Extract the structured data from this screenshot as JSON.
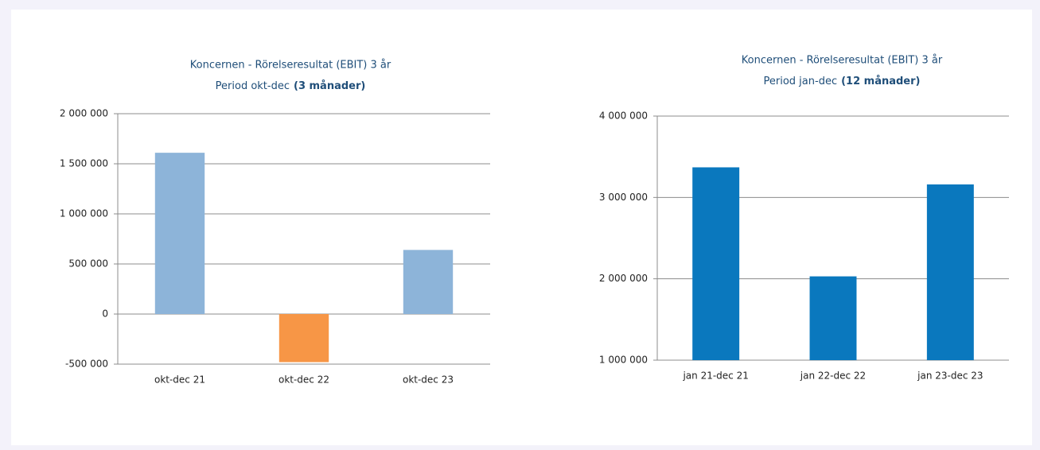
{
  "chart_data": [
    {
      "type": "bar",
      "title": "Koncernen - Rörelseresultat (EBIT) 3 år",
      "subtitle": "Period okt-dec",
      "subtitle_bold": "(3 månader)",
      "categories": [
        "okt-dec 21",
        "okt-dec 22",
        "okt-dec 23"
      ],
      "values": [
        1610000,
        -480000,
        640000
      ],
      "colors": [
        "#8db4d9",
        "#f79646",
        "#8db4d9"
      ],
      "ylim": [
        -500000,
        2000000
      ],
      "yticks": [
        {
          "value": -500000,
          "label": "-500 000"
        },
        0,
        {
          "value": 500000,
          "label": "500 000"
        },
        {
          "value": 1000000,
          "label": "1 000 000"
        },
        {
          "value": 1500000,
          "label": "1 500 000"
        },
        {
          "value": 2000000,
          "label": "2 000 000"
        }
      ],
      "grid": true
    },
    {
      "type": "bar",
      "title": "Koncernen - Rörelseresultat (EBIT) 3 år",
      "subtitle": "Period jan-dec",
      "subtitle_bold": "(12 månader)",
      "categories": [
        "jan 21-dec 21",
        "jan 22-dec 22",
        "jan 23-dec 23"
      ],
      "values": [
        3370000,
        2030000,
        3160000
      ],
      "colors": [
        "#0a78be",
        "#0a78be",
        "#0a78be"
      ],
      "ylim": [
        1000000,
        4000000
      ],
      "yticks": [
        {
          "value": 1000000,
          "label": "1 000 000"
        },
        {
          "value": 2000000,
          "label": "2 000 000"
        },
        {
          "value": 3000000,
          "label": "3 000 000"
        },
        {
          "value": 4000000,
          "label": "4 000 000"
        }
      ],
      "grid": true
    }
  ]
}
